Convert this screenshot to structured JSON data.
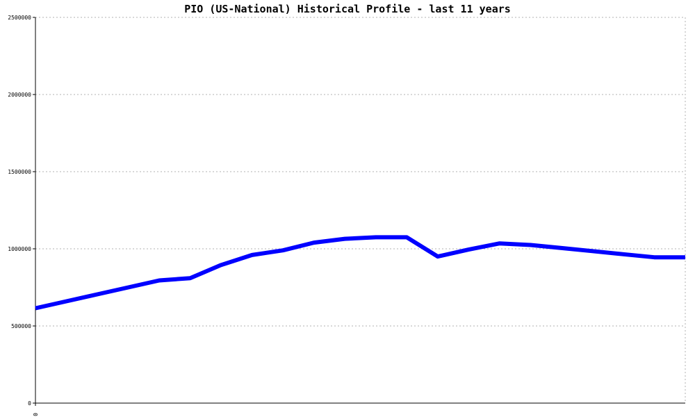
{
  "chart_data": {
    "type": "line",
    "title": "PIO (US-National) Historical Profile - last 11 years",
    "xlabel": "",
    "ylabel": "",
    "ylim": [
      0,
      2500000
    ],
    "yticks": [
      "0",
      "500000",
      "1000000",
      "1500000",
      "2000000",
      "2500000"
    ],
    "xticks": [
      "0"
    ],
    "grid": true,
    "colors": {
      "line": "#0000ff",
      "grid": "#b0b0b0",
      "axis": "#000000"
    },
    "x": [
      0,
      1,
      2,
      3,
      4,
      5,
      6,
      7,
      8,
      9,
      10,
      11,
      12,
      13,
      14,
      15,
      16,
      17,
      18,
      19,
      20,
      21
    ],
    "values": [
      615000,
      660000,
      705000,
      750000,
      795000,
      810000,
      895000,
      960000,
      990000,
      1040000,
      1065000,
      1075000,
      1075000,
      950000,
      995000,
      1035000,
      1025000,
      1005000,
      985000,
      965000,
      945000,
      945000
    ]
  }
}
